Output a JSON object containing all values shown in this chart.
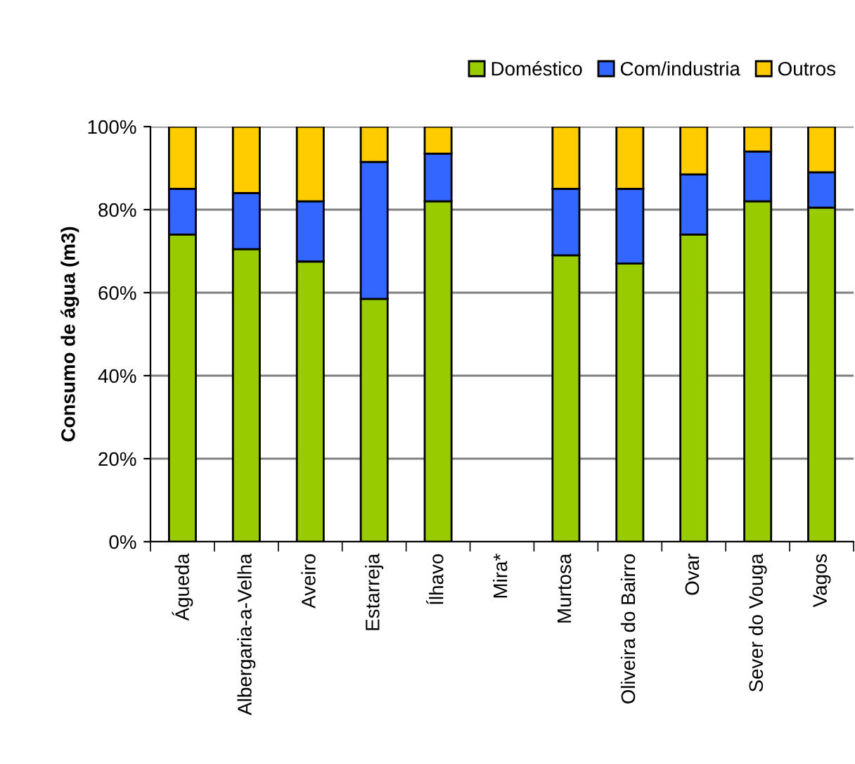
{
  "chart_data": {
    "type": "bar",
    "stacked": true,
    "ylabel": "Consumo de água (m3)",
    "categories": [
      "Águeda",
      "Albergaria-a-Velha",
      "Aveiro",
      "Estarreja",
      "Ílhavo",
      "Mira*",
      "Murtosa",
      "Oliveira do Bairro",
      "Ovar",
      "Sever do Vouga",
      "Vagos"
    ],
    "series": [
      {
        "name": "Doméstico",
        "color": "#99cc00",
        "values": [
          74,
          70.5,
          67.5,
          58.5,
          82,
          null,
          69,
          67,
          74,
          82,
          80.5
        ]
      },
      {
        "name": "Com/industria",
        "color": "#3366ff",
        "values": [
          11,
          13.5,
          14.5,
          33,
          11.5,
          null,
          16,
          18,
          14.5,
          12,
          8.5
        ]
      },
      {
        "name": "Outros",
        "color": "#ffcc00",
        "values": [
          15,
          16,
          18,
          8.5,
          6.5,
          null,
          15,
          15,
          11.5,
          6,
          11
        ]
      }
    ],
    "ylim": [
      0,
      100
    ],
    "yticks": [
      {
        "value": 0,
        "label": "0%"
      },
      {
        "value": 20,
        "label": "20%"
      },
      {
        "value": 40,
        "label": "40%"
      },
      {
        "value": 60,
        "label": "60%"
      },
      {
        "value": 80,
        "label": "80%"
      },
      {
        "value": 100,
        "label": "100%"
      }
    ],
    "grid": "y",
    "legend": "top right"
  }
}
